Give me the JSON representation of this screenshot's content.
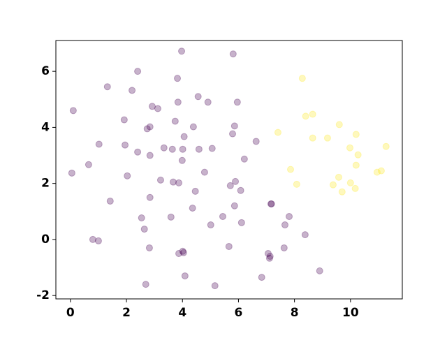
{
  "chart_data": {
    "type": "scatter",
    "series": [
      {
        "color": "#440154",
        "x": [
          0.05,
          0.1,
          0.65,
          0.8,
          1.0,
          1.02,
          1.32,
          1.42,
          1.92,
          1.95,
          2.03,
          2.2,
          2.4,
          2.4,
          2.54,
          2.64,
          2.69,
          2.74,
          2.82,
          2.84,
          2.84,
          2.84,
          2.92,
          3.12,
          3.22,
          3.34,
          3.59,
          3.64,
          3.67,
          3.74,
          3.82,
          3.84,
          3.87,
          3.87,
          3.97,
          3.99,
          4.01,
          4.01,
          4.04,
          4.06,
          4.09,
          4.36,
          4.39,
          4.46,
          4.56,
          4.59,
          4.79,
          4.91,
          5.01,
          5.06,
          5.16,
          5.44,
          5.66,
          5.71,
          5.79,
          5.81,
          5.86,
          5.86,
          5.89,
          5.96,
          6.08,
          6.11,
          6.21,
          6.63,
          6.83,
          7.06,
          7.11,
          7.13,
          7.16,
          7.18,
          7.66,
          7.63,
          7.81,
          8.38,
          8.9
        ],
        "values": [
          2.37,
          4.6,
          2.67,
          0.0,
          -0.05,
          3.4,
          5.45,
          1.37,
          4.27,
          3.37,
          2.27,
          5.32,
          3.12,
          6.0,
          0.77,
          0.37,
          -1.6,
          3.95,
          -0.3,
          3.0,
          1.5,
          4.02,
          4.75,
          4.67,
          2.12,
          3.27,
          0.8,
          3.22,
          2.05,
          4.22,
          5.75,
          4.9,
          2.02,
          -0.5,
          6.72,
          2.82,
          -0.42,
          3.22,
          -0.47,
          3.67,
          -1.3,
          1.12,
          4.02,
          1.72,
          5.1,
          3.22,
          2.4,
          4.9,
          0.52,
          3.25,
          -1.65,
          0.82,
          -0.25,
          1.92,
          3.77,
          6.62,
          1.2,
          4.05,
          2.07,
          4.9,
          1.75,
          0.6,
          2.87,
          3.5,
          -1.35,
          -0.5,
          -0.67,
          -0.6,
          1.27,
          1.27,
          0.52,
          -0.3,
          0.82,
          0.17,
          -1.12
        ]
      },
      {
        "color": "#fde725",
        "x": [
          7.41,
          7.86,
          8.08,
          8.28,
          8.4,
          8.65,
          8.65,
          9.18,
          9.38,
          9.58,
          9.6,
          9.7,
          9.98,
          10.0,
          10.17,
          10.2,
          10.2,
          10.27,
          10.95,
          11.1,
          11.27
        ],
        "values": [
          3.82,
          2.5,
          1.97,
          5.75,
          4.4,
          4.47,
          3.62,
          3.62,
          1.95,
          2.22,
          4.1,
          1.7,
          3.27,
          2.02,
          1.82,
          3.75,
          2.65,
          3.02,
          2.4,
          2.45,
          3.32
        ]
      }
    ],
    "alpha": 0.3,
    "xlim": [
      -0.52,
      11.85
    ],
    "xticks": [
      0,
      2,
      4,
      6,
      8,
      10
    ],
    "ylim": [
      -2.12,
      7.1
    ],
    "yticks": [
      -2,
      0,
      2,
      4,
      6
    ]
  }
}
